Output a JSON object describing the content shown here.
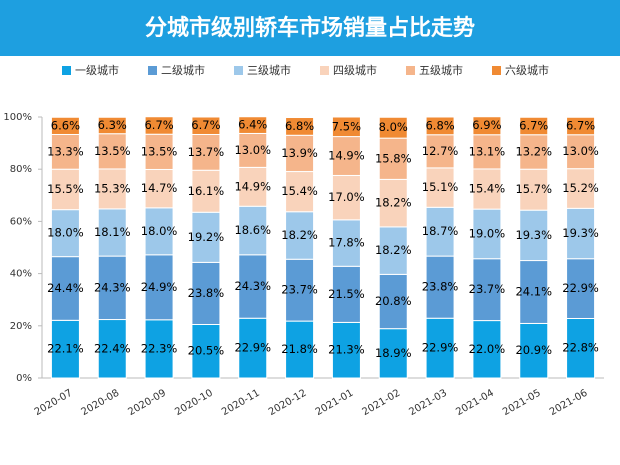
{
  "chart_data": {
    "type": "stacked_bar",
    "title": "分城市级别轿车市场销量占比走势",
    "categories": [
      "2020-07",
      "2020-08",
      "2020-09",
      "2020-10",
      "2020-11",
      "2020-12",
      "2021-01",
      "2021-02",
      "2021-03",
      "2021-04",
      "2021-05",
      "2021-06"
    ],
    "series": [
      {
        "name": "一级城市",
        "color": "#0ea2e3",
        "values": [
          22.1,
          22.4,
          22.3,
          20.5,
          22.9,
          21.8,
          21.3,
          18.9,
          22.9,
          22.0,
          20.9,
          22.8
        ],
        "value_labels": [
          "22.1%",
          "22.4%",
          "22.3%",
          "20.5%",
          "22.9%",
          "21.8%",
          "21.3%",
          "18.9%",
          "22.9%",
          "22.0%",
          "20.9%",
          "22.8%"
        ]
      },
      {
        "name": "二级城市",
        "color": "#5b9bd5",
        "values": [
          24.4,
          24.3,
          24.9,
          23.8,
          24.3,
          23.7,
          21.5,
          20.8,
          23.8,
          23.7,
          24.1,
          22.9
        ],
        "value_labels": [
          "24.4%",
          "24.3%",
          "24.9%",
          "23.8%",
          "24.3%",
          "23.7%",
          "21.5%",
          "20.8%",
          "23.8%",
          "23.7%",
          "24.1%",
          "22.9%"
        ]
      },
      {
        "name": "三级城市",
        "color": "#9dc8ea",
        "values": [
          18.0,
          18.1,
          18.0,
          19.2,
          18.6,
          18.2,
          17.8,
          18.2,
          18.7,
          19.0,
          19.3,
          19.3
        ],
        "value_labels": [
          "18.0%",
          "18.1%",
          "18.0%",
          "19.2%",
          "18.6%",
          "18.2%",
          "17.8%",
          "18.2%",
          "18.7%",
          "19.0%",
          "19.3%",
          "19.3%"
        ]
      },
      {
        "name": "四级城市",
        "color": "#f9d3bb",
        "values": [
          15.5,
          15.3,
          14.7,
          16.1,
          14.9,
          15.4,
          17.0,
          18.2,
          15.1,
          15.4,
          15.7,
          15.2
        ],
        "value_labels": [
          "15.5%",
          "15.3%",
          "14.7%",
          "16.1%",
          "14.9%",
          "15.4%",
          "17.0%",
          "18.2%",
          "15.1%",
          "15.4%",
          "15.7%",
          "15.2%"
        ]
      },
      {
        "name": "五级城市",
        "color": "#f5b58b",
        "values": [
          13.3,
          13.5,
          13.5,
          13.7,
          13.0,
          13.9,
          14.9,
          15.8,
          12.7,
          13.1,
          13.2,
          13.0
        ],
        "value_labels": [
          "13.3%",
          "13.5%",
          "13.5%",
          "13.7%",
          "13.0%",
          "13.9%",
          "14.9%",
          "15.8%",
          "12.7%",
          "13.1%",
          "13.2%",
          "13.0%"
        ]
      },
      {
        "name": "六级城市",
        "color": "#f08a33",
        "values": [
          6.6,
          6.3,
          6.7,
          6.7,
          6.4,
          6.8,
          7.5,
          8.0,
          6.8,
          6.9,
          6.7,
          6.7
        ],
        "value_labels": [
          "6.6%",
          "6.3%",
          "6.7%",
          "6.7%",
          "6.4%",
          "6.8%",
          "7.5%",
          "8.0%",
          "6.8%",
          "6.9%",
          "6.7%",
          "6.7%"
        ]
      }
    ],
    "ylim": [
      0,
      100
    ],
    "yticks": [
      {
        "value": 0,
        "label": "0%"
      },
      {
        "value": 20,
        "label": "20%"
      },
      {
        "value": 40,
        "label": "40%"
      },
      {
        "value": 60,
        "label": "60%"
      },
      {
        "value": 80,
        "label": "80%"
      },
      {
        "value": 100,
        "label": "100%"
      }
    ],
    "grid": false,
    "legend": "top"
  }
}
